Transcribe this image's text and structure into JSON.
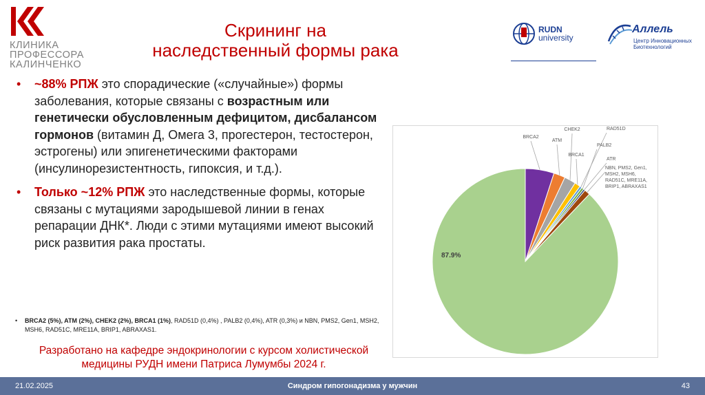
{
  "logo": {
    "lines": [
      "КЛИНИКА",
      "ПРОФЕССОРА",
      "КАЛИНЧЕНКО"
    ]
  },
  "title": {
    "line1": "Скрининг на",
    "line2": "наследственный формы рака"
  },
  "rudn": {
    "line1": "RUDN",
    "line2": "university"
  },
  "allel": {
    "title": "Аллель",
    "sub1": "Центр Инновационных",
    "sub2": "Биотехнологий"
  },
  "bullet1": {
    "highlight": "~88% РПЖ",
    "text1": " это спорадические («случайные») формы заболевания, которые связаны с ",
    "bold": "возрастным или генетически обусловленным дефицитом, дисбалансом гормонов",
    "text2": " (витамин Д, Омега 3, прогестерон, тестостерон, эстрогены) или эпигенетическими факторами (инсулинорезистентность, гипоксия, и т.д.)."
  },
  "bullet2": {
    "highlight": "Только ~12% РПЖ",
    "text": " это наследственные формы, которые связаны с мутациями зародышевой линии в генах репарации ДНК*. Люди с этими мутациями имеют высокий риск развития рака простаты."
  },
  "note": {
    "bold": "BRCA2 (5%), ATM (2%), CHEK2 (2%), BRCA1 (1%)",
    "text": ", RAD51D (0,4%) , PALB2 (0,4%), ATR (0,3%) и NBN, PMS2, Gen1, MSH2, MSH6, RAD51C, MRE11A, BRIP1, ABRAXAS1."
  },
  "credit": {
    "line1": "Разработано на кафедре эндокринологии с курсом холистической",
    "line2": "медицины РУДН имени Патриса Лумумбы 2024 г."
  },
  "footer": {
    "date": "21.02.2025",
    "title": "Синдром гипогонадизма у мужчин",
    "page": "43"
  },
  "colors": {
    "accent": "#c00000",
    "footer_bg": "#5b7099",
    "rudn_blue": "#1c3f94"
  },
  "chart_data": {
    "type": "pie",
    "big_label": "87.9%",
    "slices": [
      {
        "name": "BRCA2",
        "value": 5,
        "color": "#7030a0"
      },
      {
        "name": "ATM",
        "value": 2,
        "color": "#ed7d31"
      },
      {
        "name": "CHEK2",
        "value": 2,
        "color": "#a5a5a5"
      },
      {
        "name": "BRCA1",
        "value": 1,
        "color": "#ffc000"
      },
      {
        "name": "RAD51D",
        "value": 0.4,
        "color": "#5b9bd5"
      },
      {
        "name": "PALB2",
        "value": 0.4,
        "color": "#70ad47"
      },
      {
        "name": "ATR",
        "value": 0.3,
        "color": "#264478"
      },
      {
        "name": "NBN, PMS2, Gen1, MSH2, MSH6, RAD51C, MRE11A, BRIP1, ABRAXAS1",
        "value": 1.0,
        "color": "#9e480e"
      },
      {
        "name": "",
        "value": 87.9,
        "color": "#a9d18e"
      }
    ]
  }
}
